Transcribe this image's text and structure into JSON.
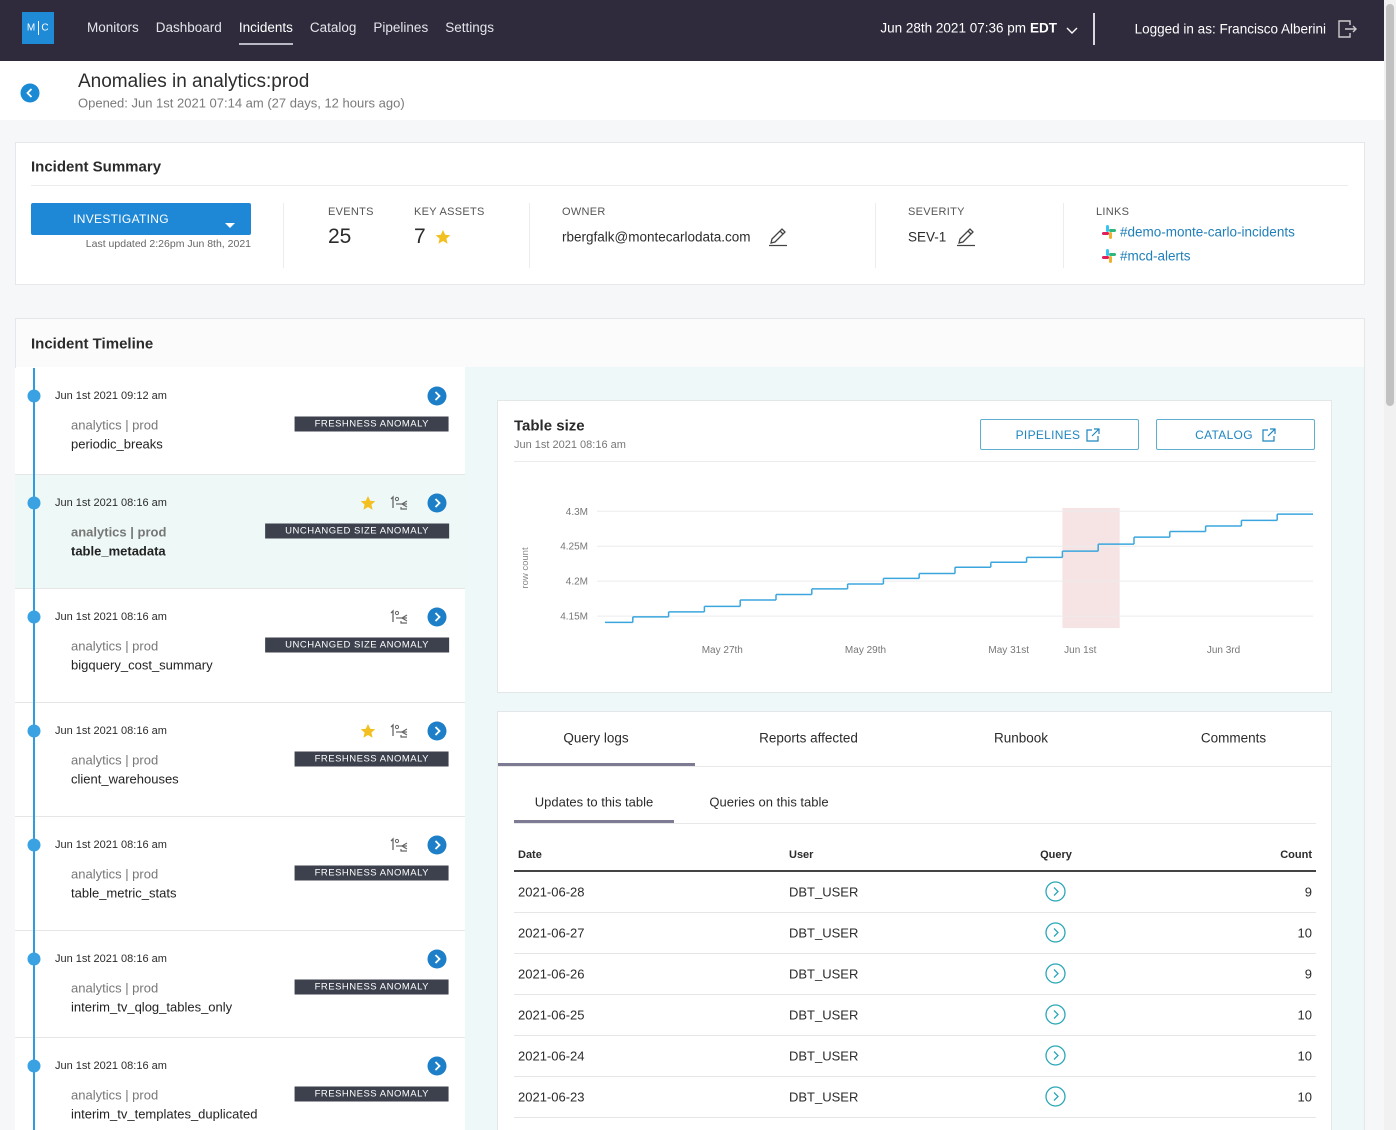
{
  "nav": {
    "logo": [
      "M",
      "C"
    ],
    "links": [
      "Monitors",
      "Dashboard",
      "Incidents",
      "Catalog",
      "Pipelines",
      "Settings"
    ],
    "active": 2,
    "datetime": "Jun 28th 2021 07:36 pm",
    "timezone": "EDT",
    "user": "Logged in as: Francisco Alberini"
  },
  "header": {
    "title": "Anomalies in analytics:prod",
    "opened": "Opened: Jun 1st 2021 07:14 am (27 days, 12 hours ago)"
  },
  "summary": {
    "title": "Incident Summary",
    "status": "INVESTIGATING",
    "updated": "Last updated 2:26pm Jun 8th, 2021",
    "events_label": "EVENTS",
    "events": 25,
    "key_assets_label": "KEY ASSETS",
    "key_assets": 7,
    "owner_label": "OWNER",
    "owner": "rbergfalk@montecarlodata.com",
    "severity_label": "SEVERITY",
    "severity": "SEV-1",
    "links_label": "LINKS",
    "links": [
      "#demo-monte-carlo-incidents",
      "#mcd-alerts"
    ]
  },
  "timeline": {
    "title": "Incident Timeline",
    "events": [
      {
        "time": "Jun 1st 2021 09:12 am",
        "dataset": "analytics | prod",
        "table": "periodic_breaks",
        "anomaly": "FRESHNESS ANOMALY",
        "starred": false,
        "first": false,
        "selected": false
      },
      {
        "time": "Jun 1st 2021 08:16 am",
        "dataset": "analytics | prod",
        "table": "table_metadata",
        "anomaly": "UNCHANGED SIZE ANOMALY",
        "starred": true,
        "first": true,
        "selected": true
      },
      {
        "time": "Jun 1st 2021 08:16 am",
        "dataset": "analytics | prod",
        "table": "bigquery_cost_summary",
        "anomaly": "UNCHANGED SIZE ANOMALY",
        "starred": false,
        "first": true,
        "selected": false
      },
      {
        "time": "Jun 1st 2021 08:16 am",
        "dataset": "analytics | prod",
        "table": "client_warehouses",
        "anomaly": "FRESHNESS ANOMALY",
        "starred": true,
        "first": true,
        "selected": false
      },
      {
        "time": "Jun 1st 2021 08:16 am",
        "dataset": "analytics | prod",
        "table": "table_metric_stats",
        "anomaly": "FRESHNESS ANOMALY",
        "starred": false,
        "first": true,
        "selected": false
      },
      {
        "time": "Jun 1st 2021 08:16 am",
        "dataset": "analytics | prod",
        "table": "interim_tv_qlog_tables_only",
        "anomaly": "FRESHNESS ANOMALY",
        "starred": false,
        "first": false,
        "selected": false
      },
      {
        "time": "Jun 1st 2021 08:16 am",
        "dataset": "analytics | prod",
        "table": "interim_tv_templates_duplicated",
        "anomaly": "FRESHNESS ANOMALY",
        "starred": false,
        "first": false,
        "selected": false
      }
    ]
  },
  "chart_data": {
    "type": "step",
    "title": "Table size",
    "subtitle": "Jun 1st 2021 08:16 am",
    "buttons": [
      "PIPELINES",
      "CATALOG"
    ],
    "y_label": "row count",
    "categories": [
      null,
      null,
      null,
      "May 27th",
      null,
      null,
      null,
      "May 29th",
      null,
      null,
      null,
      "May 31st",
      null,
      "Jun 1st",
      null,
      null,
      null,
      "Jun 3rd",
      null,
      null
    ],
    "values": [
      4141000,
      4149000,
      4156000,
      4164000,
      4173000,
      4181000,
      4189000,
      4196000,
      4204000,
      4211000,
      4220000,
      4227000,
      4234000,
      4243000,
      4253000,
      4263000,
      4271000,
      4279000,
      4287000,
      4296000
    ],
    "color": "#3aa6dd",
    "highlight": 13,
    "ylim": [
      4133000,
      4309000
    ],
    "yticks": [
      {
        "value": 4150000,
        "label": "4.15M"
      },
      {
        "value": 4200000,
        "label": "4.2M"
      },
      {
        "value": 4250000,
        "label": "4.25M"
      },
      {
        "value": 4300000,
        "label": "4.3M"
      }
    ],
    "grid": true
  },
  "detail": {
    "tabs": [
      "Query logs",
      "Reports affected",
      "Runbook",
      "Comments"
    ],
    "active_tab": 0,
    "subtabs": [
      "Updates to this table",
      "Queries on this table"
    ],
    "active_subtab": 0,
    "table": {
      "columns": [
        "Date",
        "User",
        "Query",
        "Count"
      ],
      "rows": [
        [
          "2021-06-28",
          "DBT_USER",
          9
        ],
        [
          "2021-06-27",
          "DBT_USER",
          10
        ],
        [
          "2021-06-26",
          "DBT_USER",
          9
        ],
        [
          "2021-06-25",
          "DBT_USER",
          10
        ],
        [
          "2021-06-24",
          "DBT_USER",
          10
        ],
        [
          "2021-06-23",
          "DBT_USER",
          10
        ]
      ]
    }
  }
}
